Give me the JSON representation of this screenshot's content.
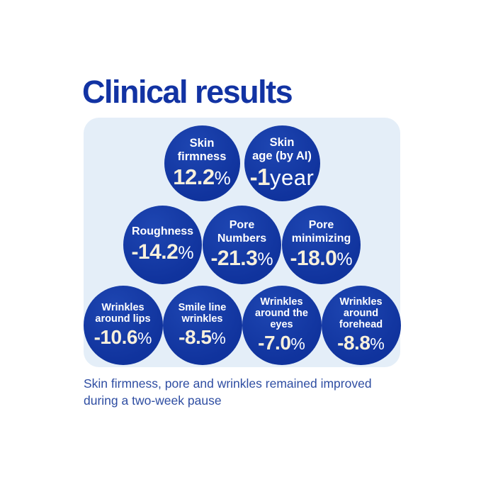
{
  "title": "Clinical results",
  "caption": "Skin firmness, pore and wrinkles remained improved during a two-week pause",
  "colors": {
    "title_color": "#1233a3",
    "caption_color": "#2e4da2",
    "panel_bg": "#e4eef8",
    "circle_bg": "#10339d",
    "circle_bg_light": "#1e46b2",
    "label_color": "#ffffff",
    "value_color": "#f7f0dc",
    "unit_color": "#fbfdff"
  },
  "panel": {
    "rows": [
      {
        "circles": [
          {
            "label_lines": [
              "Skin",
              "firmness"
            ],
            "value": "12.2",
            "unit": "%"
          },
          {
            "label_lines": [
              "Skin",
              "age (by AI)"
            ],
            "value": "-1",
            "unit": "year"
          }
        ]
      },
      {
        "circles": [
          {
            "label_lines": [
              "Roughness"
            ],
            "value": "-14.2",
            "unit": "%"
          },
          {
            "label_lines": [
              "Pore",
              "Numbers"
            ],
            "value": "-21.3",
            "unit": "%"
          },
          {
            "label_lines": [
              "Pore",
              "minimizing"
            ],
            "value": "-18.0",
            "unit": "%"
          }
        ]
      },
      {
        "circles": [
          {
            "label_lines": [
              "Wrinkles",
              "around lips"
            ],
            "value": "-10.6",
            "unit": "%"
          },
          {
            "label_lines": [
              "Smile line",
              "wrinkles"
            ],
            "value": "-8.5",
            "unit": "%"
          },
          {
            "label_lines": [
              "Wrinkles",
              "around the",
              "eyes"
            ],
            "value": "-7.0",
            "unit": "%"
          },
          {
            "label_lines": [
              "Wrinkles",
              "around",
              "forehead"
            ],
            "value": "-8.8",
            "unit": "%"
          }
        ]
      }
    ]
  },
  "chart_data": {
    "type": "table",
    "title": "Clinical results",
    "categories": [
      "Skin firmness",
      "Skin age (by AI)",
      "Roughness",
      "Pore Numbers",
      "Pore minimizing",
      "Wrinkles around lips",
      "Smile line wrinkles",
      "Wrinkles around the eyes",
      "Wrinkles around forehead"
    ],
    "values": [
      12.2,
      -1,
      -14.2,
      -21.3,
      -18.0,
      -10.6,
      -8.5,
      -7.0,
      -8.8
    ],
    "units": [
      "%",
      "year",
      "%",
      "%",
      "%",
      "%",
      "%",
      "%",
      "%"
    ],
    "annotations": [
      "Skin firmness, pore and wrinkles remained improved during a two-week pause"
    ],
    "legend_position": "none",
    "grid": false
  }
}
